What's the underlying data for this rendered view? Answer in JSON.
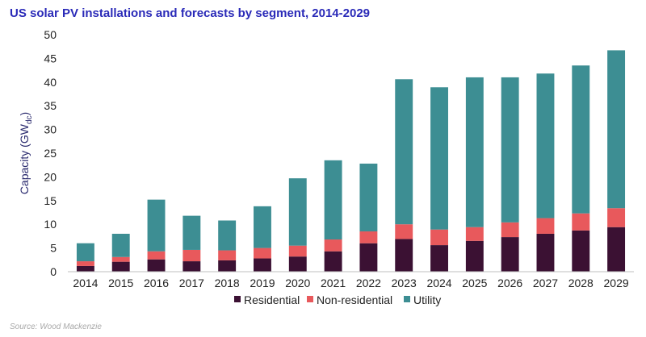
{
  "chart_data": {
    "type": "bar",
    "stacked": true,
    "title": "US solar PV installations and forecasts by segment, 2014-2029",
    "ylabel_main": "Capacity (GW",
    "ylabel_sub": "dc",
    "ylabel_close": ")",
    "ylim": [
      0,
      50
    ],
    "yticks": [
      0,
      5,
      10,
      15,
      20,
      25,
      30,
      35,
      40,
      45,
      50
    ],
    "grid": false,
    "legend_position": "bottom",
    "categories": [
      "2014",
      "2015",
      "2016",
      "2017",
      "2018",
      "2019",
      "2020",
      "2021",
      "2022",
      "2023",
      "2024",
      "2025",
      "2026",
      "2027",
      "2028",
      "2029"
    ],
    "series": [
      {
        "name": "Residential",
        "color": "#3b1133",
        "values": [
          1.2,
          2.1,
          2.6,
          2.2,
          2.4,
          2.8,
          3.2,
          4.3,
          6.0,
          6.9,
          5.6,
          6.5,
          7.3,
          8.0,
          8.7,
          9.4
        ]
      },
      {
        "name": "Non-residential",
        "color": "#e8595c",
        "values": [
          1.0,
          1.0,
          1.7,
          2.4,
          2.1,
          2.2,
          2.3,
          2.5,
          2.5,
          3.1,
          3.3,
          2.9,
          3.1,
          3.3,
          3.6,
          4.0
        ]
      },
      {
        "name": "Utility",
        "color": "#3d8e93",
        "values": [
          3.8,
          4.9,
          10.9,
          7.2,
          6.3,
          8.8,
          14.2,
          16.7,
          14.3,
          30.6,
          30.0,
          31.6,
          30.6,
          30.5,
          31.2,
          33.3
        ]
      }
    ]
  },
  "source": "Source: Wood Mackenzie"
}
